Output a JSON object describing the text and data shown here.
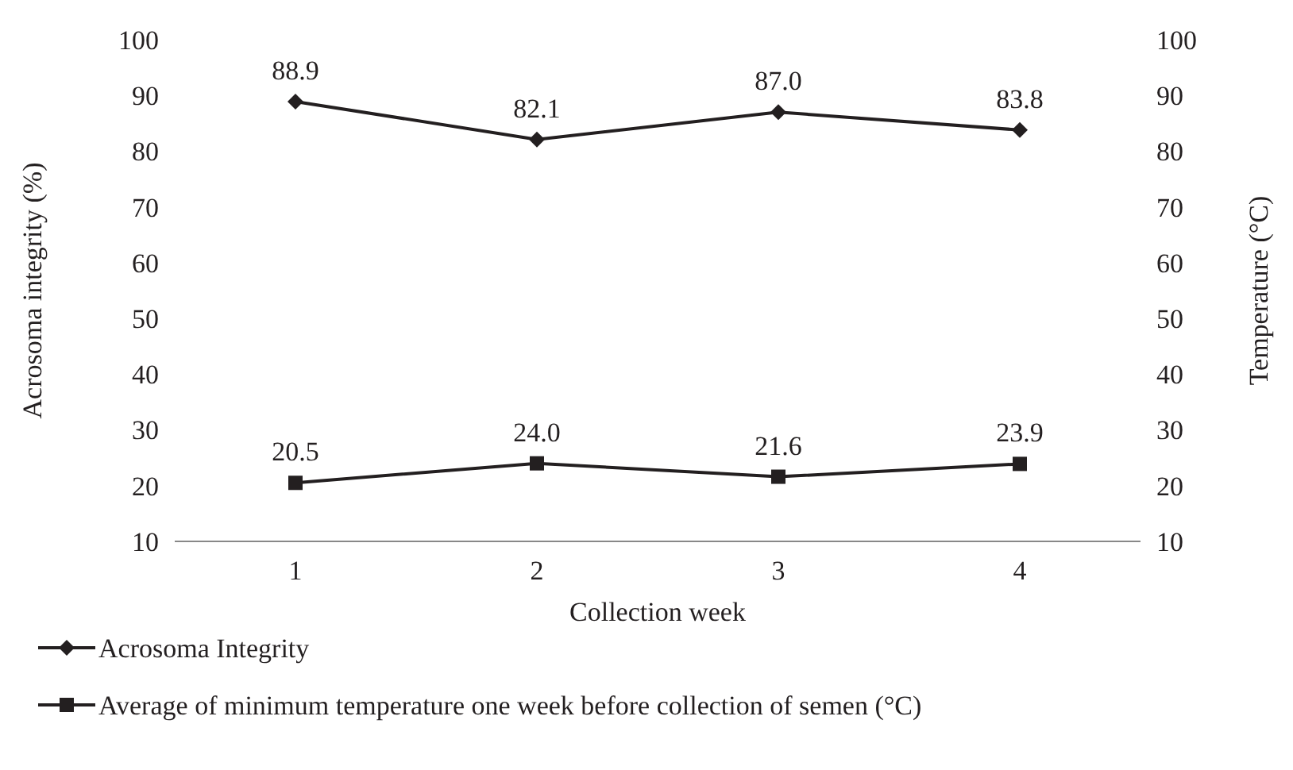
{
  "chart_data": {
    "type": "line",
    "xlabel": "Collection week",
    "ylabel": "Acrosoma integrity (%)",
    "y2label": "Temperature (°C)",
    "categories": [
      "1",
      "2",
      "3",
      "4"
    ],
    "series": [
      {
        "name": "Acrosoma Integrity",
        "color": "#231f20",
        "values": [
          88.9,
          82.1,
          87.0,
          83.8
        ],
        "value_labels": [
          "88.9",
          "82.1",
          "87.0",
          "83.8"
        ],
        "marker": "diamond"
      },
      {
        "name": "Average of minimum temperature one week before collection of semen (°C)",
        "color": "#231f20",
        "values": [
          20.5,
          24.0,
          21.6,
          23.9
        ],
        "value_labels": [
          "20.5",
          "24.0",
          "21.6",
          "23.9"
        ],
        "marker": "square",
        "axis": "y2"
      }
    ],
    "ylim": [
      10,
      100
    ],
    "yticks": [
      10,
      20,
      30,
      40,
      50,
      60,
      70,
      80,
      90,
      100
    ],
    "y2lim": [
      10,
      100
    ],
    "y2ticks": [
      10,
      20,
      30,
      40,
      50,
      60,
      70,
      80,
      90,
      100
    ],
    "legend": "bottom",
    "grid": false
  }
}
